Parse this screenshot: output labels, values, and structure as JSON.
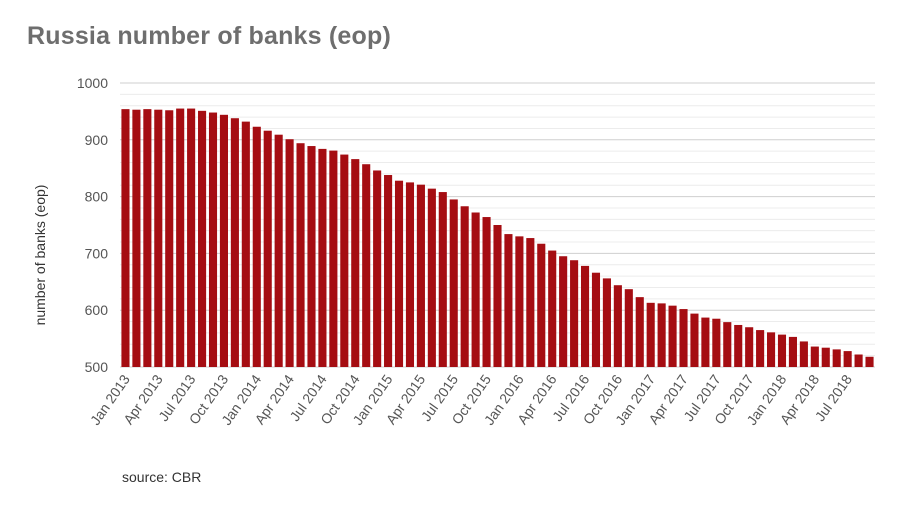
{
  "chart_data": {
    "type": "bar",
    "title": "Russia number of banks (eop)",
    "ylabel": "number of banks (eop)",
    "xlabel": "",
    "source": "source: CBR",
    "ylim": [
      500,
      1000
    ],
    "yticks": [
      500,
      600,
      700,
      800,
      900,
      1000
    ],
    "grid": true,
    "bar_color": "#a50d12",
    "categories": [
      "Jan 2013",
      "Feb 2013",
      "Mar 2013",
      "Apr 2013",
      "May 2013",
      "Jun 2013",
      "Jul 2013",
      "Aug 2013",
      "Sep 2013",
      "Oct 2013",
      "Nov 2013",
      "Dec 2013",
      "Jan 2014",
      "Feb 2014",
      "Mar 2014",
      "Apr 2014",
      "May 2014",
      "Jun 2014",
      "Jul 2014",
      "Aug 2014",
      "Sep 2014",
      "Oct 2014",
      "Nov 2014",
      "Dec 2014",
      "Jan 2015",
      "Feb 2015",
      "Mar 2015",
      "Apr 2015",
      "May 2015",
      "Jun 2015",
      "Jul 2015",
      "Aug 2015",
      "Sep 2015",
      "Oct 2015",
      "Nov 2015",
      "Dec 2015",
      "Jan 2016",
      "Feb 2016",
      "Mar 2016",
      "Apr 2016",
      "May 2016",
      "Jun 2016",
      "Jul 2016",
      "Aug 2016",
      "Sep 2016",
      "Oct 2016",
      "Nov 2016",
      "Dec 2016",
      "Jan 2017",
      "Feb 2017",
      "Mar 2017",
      "Apr 2017",
      "May 2017",
      "Jun 2017",
      "Jul 2017",
      "Aug 2017",
      "Sep 2017",
      "Oct 2017",
      "Nov 2017",
      "Dec 2017",
      "Jan 2018",
      "Feb 2018",
      "Mar 2018",
      "Apr 2018",
      "May 2018",
      "Jun 2018",
      "Jul 2018",
      "Aug 2018",
      "Sep 2018"
    ],
    "tick_labels": [
      "Jan 2013",
      "Apr 2013",
      "Jul 2013",
      "Oct 2013",
      "Jan 2014",
      "Apr 2014",
      "Jul 2014",
      "Oct 2014",
      "Jan 2015",
      "Apr 2015",
      "Jul 2015",
      "Oct 2015",
      "Jan 2016",
      "Apr 2016",
      "Jul 2016",
      "Oct 2016",
      "Jan 2017",
      "Apr 2017",
      "Jul 2017",
      "Oct 2017",
      "Jan 2018",
      "Apr 2018",
      "Jul 2018"
    ],
    "values": [
      954,
      953,
      954,
      953,
      952,
      955,
      955,
      951,
      948,
      944,
      938,
      932,
      923,
      916,
      909,
      901,
      894,
      889,
      884,
      881,
      874,
      866,
      857,
      846,
      838,
      828,
      825,
      821,
      814,
      808,
      795,
      783,
      772,
      764,
      750,
      734,
      730,
      727,
      717,
      705,
      695,
      688,
      678,
      666,
      656,
      644,
      637,
      623,
      613,
      612,
      608,
      602,
      594,
      587,
      585,
      579,
      574,
      570,
      565,
      561,
      557,
      553,
      545,
      536,
      534,
      531,
      528,
      522,
      518
    ]
  }
}
